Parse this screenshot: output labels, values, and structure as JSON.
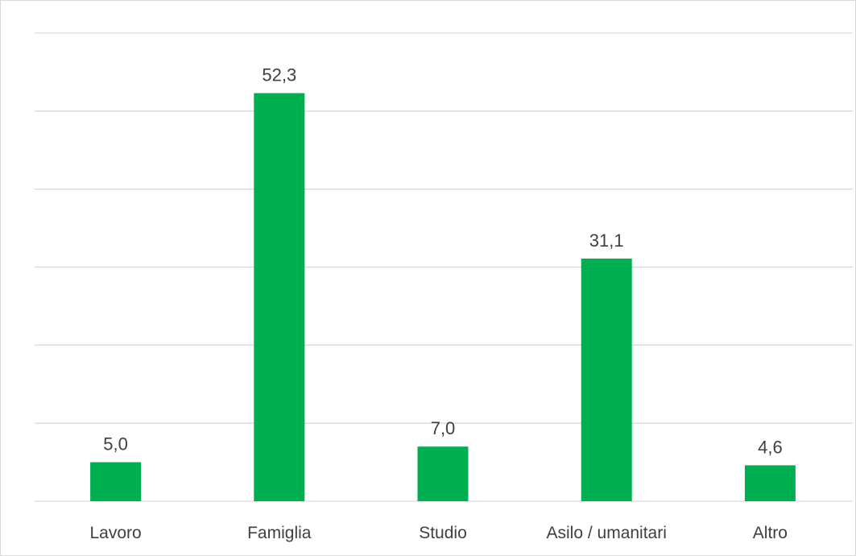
{
  "chart_data": {
    "type": "bar",
    "categories": [
      "Lavoro",
      "Famiglia",
      "Studio",
      "Asilo / umanitari",
      "Altro"
    ],
    "values": [
      5.0,
      52.3,
      7.0,
      31.1,
      4.6
    ],
    "value_labels": [
      "5,0",
      "52,3",
      "7,0",
      "31,1",
      "4,6"
    ],
    "ylim": [
      0,
      60
    ],
    "gridline_step": 10,
    "grid": true,
    "legend": "none",
    "title": "",
    "xlabel": "",
    "ylabel": "",
    "colors": {
      "bar": "#00b050",
      "grid": "#d9d9d9",
      "text": "#404040"
    }
  }
}
